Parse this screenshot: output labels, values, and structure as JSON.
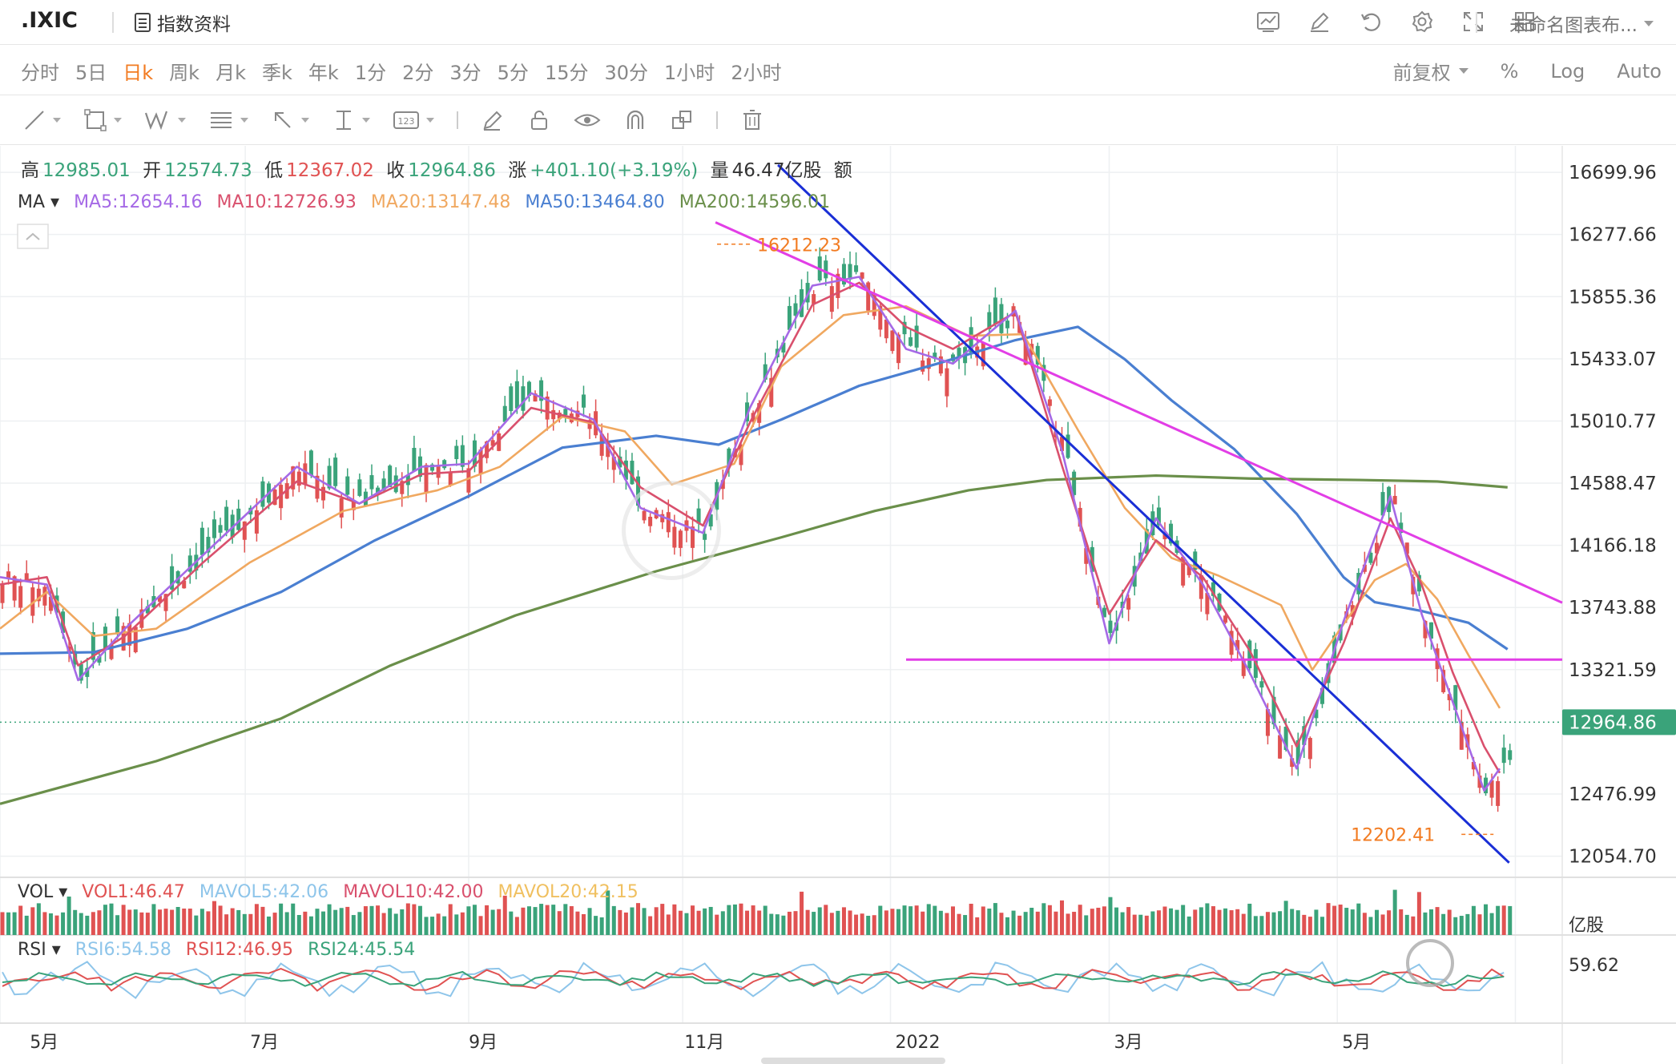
{
  "toolbar": {
    "symbol": ".IXIC",
    "index_info_label": "指数资料",
    "chart_name": "未命名图表布...",
    "icons": [
      "indicator-icon",
      "draw-icon",
      "reset-icon",
      "settings-icon",
      "fullscreen-icon",
      "layout-icon"
    ]
  },
  "periods": {
    "items": [
      "分时",
      "5日",
      "日k",
      "周k",
      "月k",
      "季k",
      "年k",
      "1分",
      "2分",
      "3分",
      "5分",
      "15分",
      "30分",
      "1小时",
      "2小时"
    ],
    "active": "日k",
    "adjust": "前复权",
    "percent": "%",
    "log": "Log",
    "auto": "Auto"
  },
  "drawing_tools": [
    "line-tool-icon",
    "rectangle-tool-icon",
    "wave-tool-icon",
    "fib-tool-icon",
    "arrow-tool-icon",
    "measure-tool-icon",
    "text-tool-icon",
    "pencil-icon",
    "lock-icon",
    "eye-icon",
    "magnet-icon",
    "duplicate-icon",
    "trash-icon"
  ],
  "quote": {
    "high_label": "高",
    "high": "12985.01",
    "open_label": "开",
    "open": "12574.73",
    "low_label": "低",
    "low": "12367.02",
    "close_label": "收",
    "close": "12964.86",
    "change_label": "涨",
    "change": "+401.10(+3.19%)",
    "volume_label": "量",
    "volume": "46.47亿股",
    "amount_label": "额"
  },
  "ma_legend": {
    "label": "MA",
    "items": [
      {
        "text": "MA5:12654.16",
        "color": "#a569e6"
      },
      {
        "text": "MA10:12726.93",
        "color": "#d9506d"
      },
      {
        "text": "MA20:13147.48",
        "color": "#f0a860"
      },
      {
        "text": "MA50:13464.80",
        "color": "#4a7fd1"
      },
      {
        "text": "MA200:14596.01",
        "color": "#6a8f4a"
      }
    ]
  },
  "vol_legend": {
    "label": "VOL",
    "items": [
      {
        "text": "VOL1:46.47",
        "color": "#e05252"
      },
      {
        "text": "MAVOL5:42.06",
        "color": "#8ec5ea"
      },
      {
        "text": "MAVOL10:42.00",
        "color": "#d9506d"
      },
      {
        "text": "MAVOL20:42.15",
        "color": "#f0c060"
      }
    ],
    "unit": "亿股"
  },
  "rsi_legend": {
    "label": "RSI",
    "items": [
      {
        "text": "RSI6:54.58",
        "color": "#8ec5ea"
      },
      {
        "text": "RSI12:46.95",
        "color": "#e05252"
      },
      {
        "text": "RSI24:45.54",
        "color": "#3aa37a"
      }
    ],
    "axis_value": "59.62"
  },
  "chart_data": {
    "type": "candlestick",
    "y_ticks": [
      16699.96,
      16277.66,
      15855.36,
      15433.07,
      15010.77,
      14588.47,
      14166.18,
      13743.88,
      13321.59,
      12476.99,
      12054.7
    ],
    "y_tick_labels": [
      "16699.96",
      "16277.66",
      "15855.36",
      "15433.07",
      "15010.77",
      "14588.47",
      "14166.18",
      "13743.88",
      "13321.59",
      "12476.99",
      "12054.70"
    ],
    "ylim": [
      11900,
      16880
    ],
    "x_labels": [
      "5月",
      "7月",
      "9月",
      "11月",
      "2022",
      "3月",
      "5月"
    ],
    "current_price": 12964.86,
    "current_price_label": "12964.86",
    "max_annotation": {
      "value": 16212.23,
      "label": "16212.23"
    },
    "min_annotation": {
      "value": 12202.41,
      "label": "12202.41"
    },
    "horizontal_line": 13390,
    "ma_series": [
      {
        "name": "MA50",
        "color": "#4a7fd1",
        "points": [
          [
            0,
            13430
          ],
          [
            0.06,
            13440
          ],
          [
            0.12,
            13600
          ],
          [
            0.18,
            13850
          ],
          [
            0.24,
            14200
          ],
          [
            0.3,
            14500
          ],
          [
            0.36,
            14830
          ],
          [
            0.42,
            14910
          ],
          [
            0.46,
            14850
          ],
          [
            0.5,
            15020
          ],
          [
            0.55,
            15250
          ],
          [
            0.6,
            15400
          ],
          [
            0.65,
            15560
          ],
          [
            0.69,
            15650
          ],
          [
            0.72,
            15430
          ],
          [
            0.75,
            15150
          ],
          [
            0.79,
            14820
          ],
          [
            0.83,
            14380
          ],
          [
            0.86,
            13950
          ],
          [
            0.88,
            13780
          ],
          [
            0.91,
            13720
          ],
          [
            0.94,
            13640
          ],
          [
            0.965,
            13460
          ]
        ]
      },
      {
        "name": "MA200",
        "color": "#6a8f4a",
        "points": [
          [
            0,
            12410
          ],
          [
            0.1,
            12700
          ],
          [
            0.18,
            12990
          ],
          [
            0.25,
            13350
          ],
          [
            0.33,
            13690
          ],
          [
            0.42,
            13990
          ],
          [
            0.5,
            14220
          ],
          [
            0.56,
            14400
          ],
          [
            0.62,
            14540
          ],
          [
            0.67,
            14610
          ],
          [
            0.74,
            14640
          ],
          [
            0.8,
            14620
          ],
          [
            0.87,
            14610
          ],
          [
            0.92,
            14600
          ],
          [
            0.965,
            14560
          ]
        ]
      },
      {
        "name": "MA20",
        "color": "#f0a860",
        "points": [
          [
            0,
            13600
          ],
          [
            0.03,
            13850
          ],
          [
            0.06,
            13550
          ],
          [
            0.1,
            13600
          ],
          [
            0.16,
            14050
          ],
          [
            0.22,
            14400
          ],
          [
            0.28,
            14540
          ],
          [
            0.32,
            14700
          ],
          [
            0.36,
            15040
          ],
          [
            0.4,
            14940
          ],
          [
            0.43,
            14580
          ],
          [
            0.47,
            14720
          ],
          [
            0.5,
            15380
          ],
          [
            0.54,
            15730
          ],
          [
            0.58,
            15790
          ],
          [
            0.62,
            15590
          ],
          [
            0.655,
            15600
          ],
          [
            0.69,
            14950
          ],
          [
            0.72,
            14420
          ],
          [
            0.75,
            14080
          ],
          [
            0.78,
            13960
          ],
          [
            0.82,
            13760
          ],
          [
            0.84,
            13320
          ],
          [
            0.86,
            13630
          ],
          [
            0.88,
            13930
          ],
          [
            0.9,
            14040
          ],
          [
            0.92,
            13800
          ],
          [
            0.94,
            13420
          ],
          [
            0.96,
            13060
          ]
        ]
      },
      {
        "name": "MA10",
        "color": "#d9506d",
        "points": [
          [
            0,
            13900
          ],
          [
            0.03,
            13950
          ],
          [
            0.05,
            13350
          ],
          [
            0.08,
            13550
          ],
          [
            0.13,
            14050
          ],
          [
            0.19,
            14600
          ],
          [
            0.23,
            14450
          ],
          [
            0.27,
            14650
          ],
          [
            0.3,
            14670
          ],
          [
            0.34,
            15100
          ],
          [
            0.38,
            15000
          ],
          [
            0.41,
            14560
          ],
          [
            0.45,
            14300
          ],
          [
            0.48,
            15000
          ],
          [
            0.52,
            15800
          ],
          [
            0.55,
            15950
          ],
          [
            0.58,
            15650
          ],
          [
            0.61,
            15500
          ],
          [
            0.65,
            15750
          ],
          [
            0.68,
            14700
          ],
          [
            0.71,
            13700
          ],
          [
            0.74,
            14200
          ],
          [
            0.77,
            13950
          ],
          [
            0.8,
            13450
          ],
          [
            0.83,
            12800
          ],
          [
            0.86,
            13500
          ],
          [
            0.89,
            14350
          ],
          [
            0.91,
            13900
          ],
          [
            0.93,
            13300
          ],
          [
            0.95,
            12800
          ],
          [
            0.96,
            12620
          ]
        ]
      },
      {
        "name": "MA5",
        "color": "#a569e6",
        "points": [
          [
            0,
            13950
          ],
          [
            0.03,
            13900
          ],
          [
            0.05,
            13250
          ],
          [
            0.08,
            13600
          ],
          [
            0.13,
            14100
          ],
          [
            0.19,
            14700
          ],
          [
            0.23,
            14450
          ],
          [
            0.27,
            14700
          ],
          [
            0.3,
            14720
          ],
          [
            0.34,
            15200
          ],
          [
            0.38,
            15020
          ],
          [
            0.41,
            14420
          ],
          [
            0.45,
            14250
          ],
          [
            0.48,
            15100
          ],
          [
            0.52,
            15930
          ],
          [
            0.55,
            15990
          ],
          [
            0.58,
            15500
          ],
          [
            0.61,
            15400
          ],
          [
            0.65,
            15760
          ],
          [
            0.68,
            14800
          ],
          [
            0.71,
            13500
          ],
          [
            0.74,
            14350
          ],
          [
            0.77,
            13900
          ],
          [
            0.8,
            13300
          ],
          [
            0.83,
            12650
          ],
          [
            0.86,
            13650
          ],
          [
            0.89,
            14500
          ],
          [
            0.91,
            13700
          ],
          [
            0.93,
            13100
          ],
          [
            0.95,
            12500
          ],
          [
            0.96,
            12650
          ]
        ]
      }
    ],
    "trendlines": [
      {
        "name": "downtrend-blue",
        "color": "#1a2fd6",
        "from": [
          0.498,
          16750
        ],
        "to": [
          0.966,
          12010
        ]
      },
      {
        "name": "resistance-magenta",
        "color": "#e23ee6",
        "from": [
          0.458,
          16360
        ],
        "to": [
          1.1,
          13300
        ]
      },
      {
        "name": "support-magenta",
        "color": "#e23ee6",
        "from": [
          0.58,
          13390
        ],
        "to": [
          1.1,
          13390
        ]
      }
    ]
  }
}
